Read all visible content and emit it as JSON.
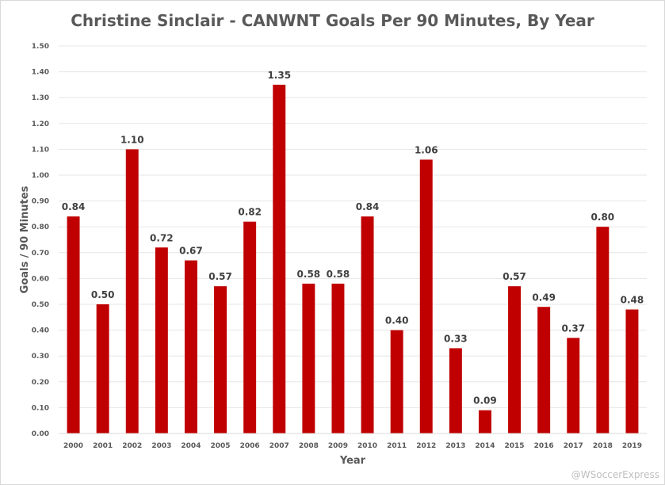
{
  "chart_data": {
    "type": "bar",
    "title": "Christine Sinclair - CANWNT Goals Per 90 Minutes, By Year",
    "xlabel": "Year",
    "ylabel": "Goals / 90 Minutes",
    "categories": [
      "2000",
      "2001",
      "2002",
      "2003",
      "2004",
      "2005",
      "2006",
      "2007",
      "2008",
      "2009",
      "2010",
      "2011",
      "2012",
      "2013",
      "2014",
      "2015",
      "2016",
      "2017",
      "2018",
      "2019"
    ],
    "values": [
      0.84,
      0.5,
      1.1,
      0.72,
      0.67,
      0.57,
      0.82,
      1.35,
      0.58,
      0.58,
      0.84,
      0.4,
      1.06,
      0.33,
      0.09,
      0.57,
      0.49,
      0.37,
      0.8,
      0.48
    ],
    "value_labels": [
      "0.84",
      "0.50",
      "1.10",
      "0.72",
      "0.67",
      "0.57",
      "0.82",
      "1.35",
      "0.58",
      "0.58",
      "0.84",
      "0.40",
      "1.06",
      "0.33",
      "0.09",
      "0.57",
      "0.49",
      "0.37",
      "0.80",
      "0.48"
    ],
    "ylim": [
      0,
      1.5
    ],
    "yticks": [
      "0.00",
      "0.10",
      "0.20",
      "0.30",
      "0.40",
      "0.50",
      "0.60",
      "0.70",
      "0.80",
      "0.90",
      "1.00",
      "1.10",
      "1.20",
      "1.30",
      "1.40",
      "1.50"
    ],
    "grid": true,
    "bar_color": "#c00000",
    "grid_color": "#e6e6e6"
  },
  "watermark": "@WSoccerExpress"
}
